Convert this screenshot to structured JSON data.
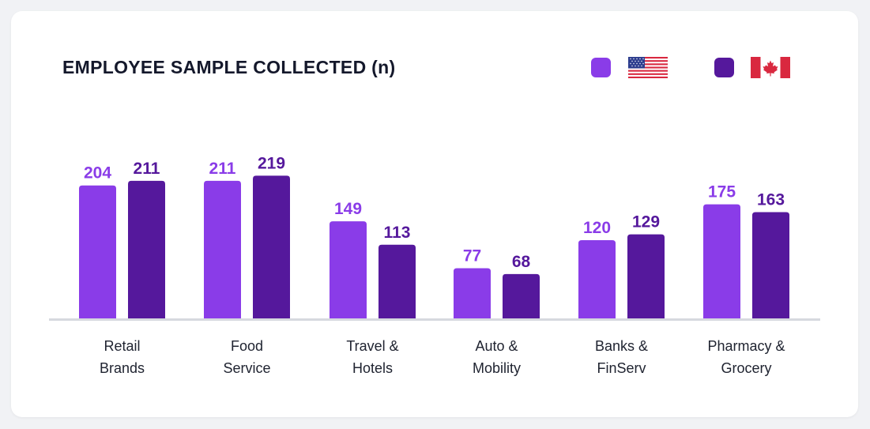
{
  "chart_data": {
    "type": "bar",
    "title": "EMPLOYEE SAMPLE COLLECTED (n)",
    "categories": [
      [
        "Retail",
        "Brands"
      ],
      [
        "Food",
        "Service"
      ],
      [
        "Travel &",
        "Hotels"
      ],
      [
        "Auto &",
        "Mobility"
      ],
      [
        "Banks &",
        "FinServ"
      ],
      [
        "Pharmacy &",
        "Grocery"
      ]
    ],
    "series": [
      {
        "values": [
          204,
          211,
          149,
          77,
          120,
          175
        ],
        "color": "#8a3ce8",
        "legend_icon": "us-flag-icon"
      },
      {
        "values": [
          211,
          219,
          113,
          68,
          129,
          163
        ],
        "color": "#55189c",
        "legend_icon": "canada-flag-icon"
      }
    ],
    "ylim": [
      0,
      240
    ],
    "grid": false,
    "legend_position": "top-right",
    "baseline_color": "#d6d9df",
    "label_text_color_dark": "#202431"
  }
}
